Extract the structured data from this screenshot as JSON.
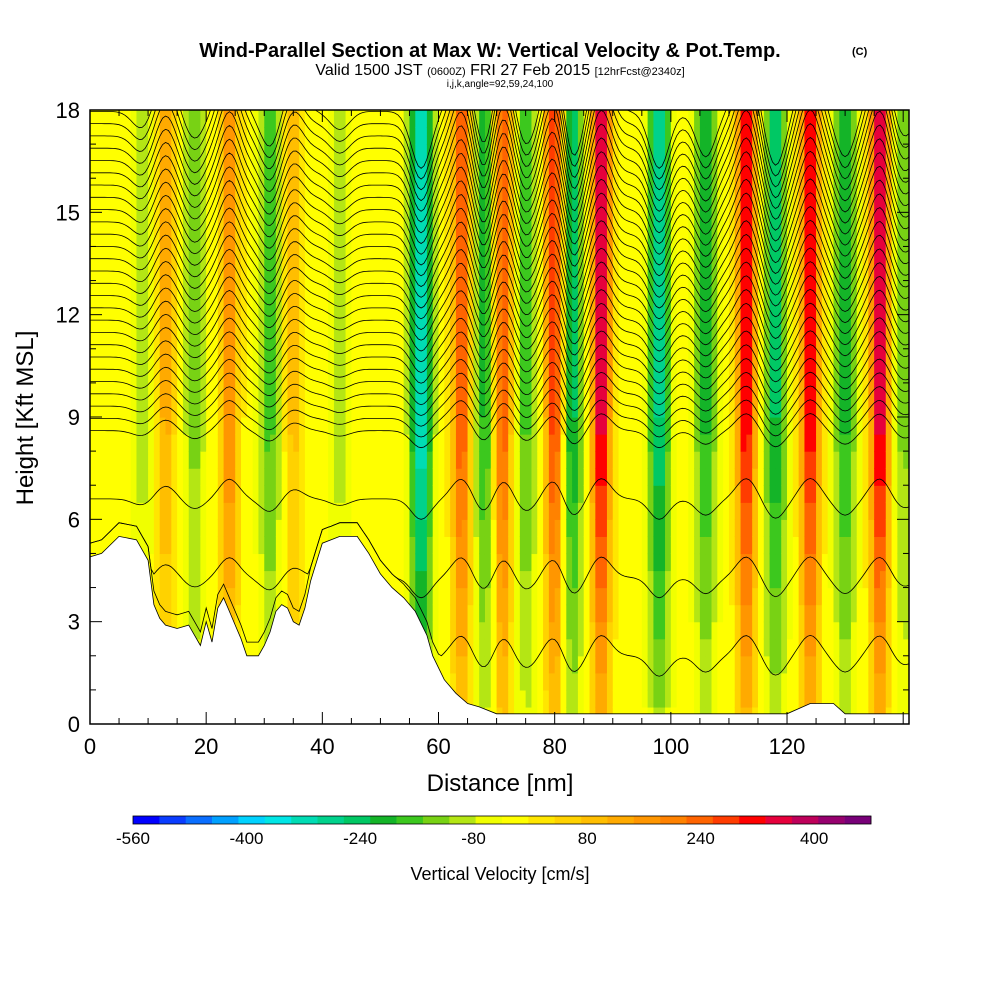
{
  "chart_data": {
    "type": "heatmap",
    "title": "Wind-Parallel Section at Max W: Vertical Velocity & Pot.Temp.",
    "title_mark": "(C)",
    "subtitle": {
      "valid_prefix": "Valid 1500 JST",
      "utc": "(0600Z)",
      "date": "FRI 27 Feb 2015",
      "fcst": "[12hrFcst@2340z]"
    },
    "ijk_line": "i,j,k,angle=92,59,24,100",
    "xlabel": "Distance [nm]",
    "ylabel": "Height [Kft MSL]",
    "xlim": [
      0,
      141
    ],
    "ylim": [
      0,
      18
    ],
    "x_ticks": [
      "0",
      "20",
      "40",
      "60",
      "80",
      "100",
      "120"
    ],
    "y_ticks": [
      "0",
      "3",
      "6",
      "9",
      "12",
      "15",
      "18"
    ],
    "colorbar": {
      "label": "Vertical Velocity [cm/s]",
      "range": [
        -560,
        480
      ],
      "step": 40,
      "tick_labels": [
        "-560",
        "-400",
        "-240",
        "-80",
        "80",
        "240",
        "400"
      ],
      "colors": [
        "#0000ff",
        "#0a3cff",
        "#0a6eff",
        "#00a0ff",
        "#00d2ff",
        "#00e6e6",
        "#00dcb4",
        "#00d28c",
        "#00c864",
        "#14b428",
        "#3cc81e",
        "#78d214",
        "#b4e614",
        "#f0ff00",
        "#ffff00",
        "#ffe600",
        "#ffd200",
        "#ffbe00",
        "#ffaa00",
        "#ff9600",
        "#ff8200",
        "#ff6400",
        "#ff3c00",
        "#ff0000",
        "#e6003c",
        "#be005a",
        "#96006e",
        "#780078"
      ]
    },
    "terrain_kft": [
      [
        0,
        4.9
      ],
      [
        2,
        5.0
      ],
      [
        5,
        5.5
      ],
      [
        8,
        5.4
      ],
      [
        10,
        4.8
      ],
      [
        11,
        3.5
      ],
      [
        12,
        3.1
      ],
      [
        13,
        2.9
      ],
      [
        15,
        2.8
      ],
      [
        17,
        2.9
      ],
      [
        19,
        2.3
      ],
      [
        20,
        3.0
      ],
      [
        21,
        2.4
      ],
      [
        22,
        3.4
      ],
      [
        23,
        3.7
      ],
      [
        24,
        3.3
      ],
      [
        25,
        2.9
      ],
      [
        26,
        2.5
      ],
      [
        27,
        2.0
      ],
      [
        29,
        2.0
      ],
      [
        30,
        2.3
      ],
      [
        31,
        2.7
      ],
      [
        32,
        3.3
      ],
      [
        33,
        3.5
      ],
      [
        34,
        3.4
      ],
      [
        35,
        3.0
      ],
      [
        36,
        2.9
      ],
      [
        37,
        3.4
      ],
      [
        38,
        4.2
      ],
      [
        40,
        5.3
      ],
      [
        43,
        5.5
      ],
      [
        46,
        5.5
      ],
      [
        48,
        5.0
      ],
      [
        50,
        4.4
      ],
      [
        52,
        4.0
      ],
      [
        54,
        3.7
      ],
      [
        56,
        3.3
      ],
      [
        58,
        2.6
      ],
      [
        59,
        2.0
      ],
      [
        61,
        1.3
      ],
      [
        63,
        0.9
      ],
      [
        65,
        0.6
      ],
      [
        67,
        0.5
      ],
      [
        70,
        0.3
      ],
      [
        80,
        0.3
      ],
      [
        120,
        0.3
      ],
      [
        124,
        0.6
      ],
      [
        128,
        0.6
      ],
      [
        130,
        0.3
      ],
      [
        141,
        0.3
      ]
    ],
    "updraft_columns": [
      {
        "x": 13,
        "value": 160
      },
      {
        "x": 24,
        "value": 240
      },
      {
        "x": 35,
        "value": 120
      },
      {
        "x": 64,
        "value": 320
      },
      {
        "x": 71,
        "value": 320
      },
      {
        "x": 80,
        "value": 360
      },
      {
        "x": 88,
        "value": 440
      },
      {
        "x": 113,
        "value": 400
      },
      {
        "x": 124,
        "value": 400
      },
      {
        "x": 136,
        "value": 440
      }
    ],
    "downdraft_columns": [
      {
        "x": 9,
        "value": -80
      },
      {
        "x": 18,
        "value": -120
      },
      {
        "x": 31,
        "value": -160
      },
      {
        "x": 43,
        "value": -80
      },
      {
        "x": 57,
        "value": -360
      },
      {
        "x": 68,
        "value": -200
      },
      {
        "x": 75,
        "value": -160
      },
      {
        "x": 83,
        "value": -240
      },
      {
        "x": 98,
        "value": -280
      },
      {
        "x": 106,
        "value": -200
      },
      {
        "x": 118,
        "value": -240
      },
      {
        "x": 130,
        "value": -200
      },
      {
        "x": 140,
        "value": -120
      }
    ],
    "theta_contours": {
      "base_level": 6,
      "count": 30,
      "interval": 1
    }
  }
}
